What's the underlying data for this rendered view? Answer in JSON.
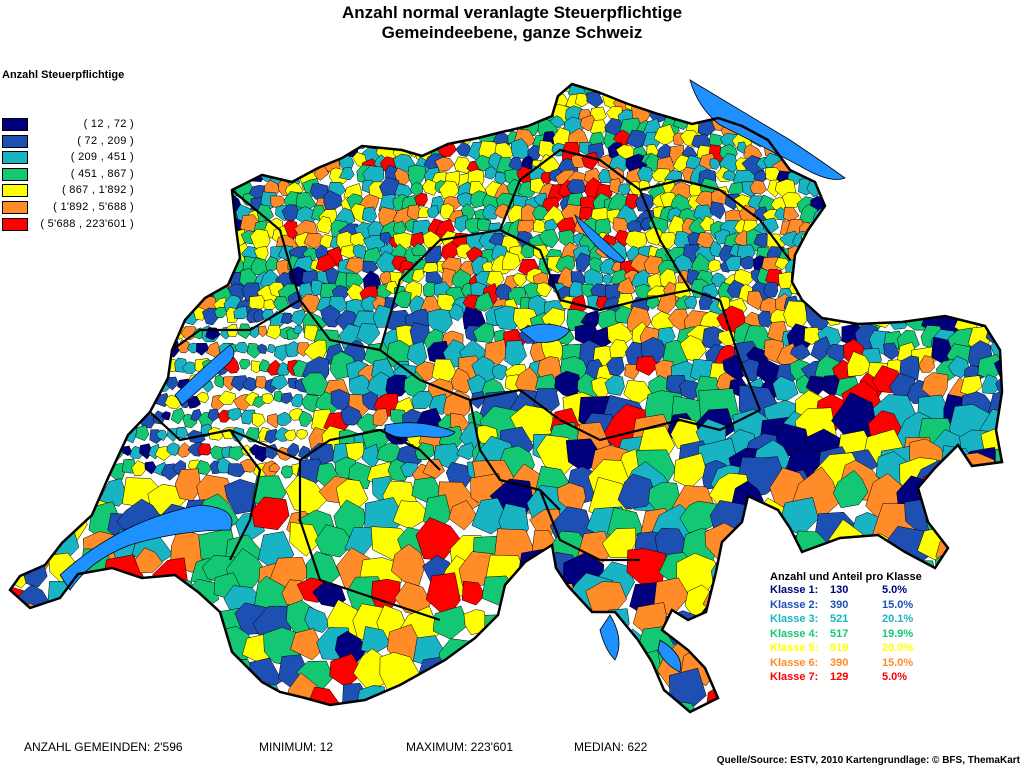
{
  "title_line1": "Anzahl normal veranlagte Steuerpflichtige",
  "title_line2": "Gemeindeebene, ganze Schweiz",
  "legend": {
    "title": "Anzahl Steuerpflichtige",
    "classes": [
      {
        "range": "( 12 , 72 )",
        "color": "#00007f"
      },
      {
        "range": "( 72 , 209 )",
        "color": "#1e50b4"
      },
      {
        "range": "( 209 , 451 )",
        "color": "#19b4c3"
      },
      {
        "range": "( 451 , 867 )",
        "color": "#14c873"
      },
      {
        "range": "( 867 , 1'892 )",
        "color": "#ffff00"
      },
      {
        "range": "( 1'892 , 5'688 )",
        "color": "#ff8c28"
      },
      {
        "range": "( 5'688 , 223'601 )",
        "color": "#ff0000"
      }
    ]
  },
  "class_stats": {
    "title": "Anzahl und Anteil pro Klasse",
    "rows": [
      {
        "label": "Klasse 1:",
        "count": "130",
        "share": "5.0%",
        "color": "#00007f"
      },
      {
        "label": "Klasse 2:",
        "count": "390",
        "share": "15.0%",
        "color": "#1e50b4"
      },
      {
        "label": "Klasse 3:",
        "count": "521",
        "share": "20.1%",
        "color": "#19b4c3"
      },
      {
        "label": "Klasse 4:",
        "count": "517",
        "share": "19.9%",
        "color": "#14c873"
      },
      {
        "label": "Klasse 5:",
        "count": "519",
        "share": "20.0%",
        "color": "#ffff00"
      },
      {
        "label": "Klasse 6:",
        "count": "390",
        "share": "15.0%",
        "color": "#ff8c28"
      },
      {
        "label": "Klasse 7:",
        "count": "129",
        "share": "5.0%",
        "color": "#ff0000"
      }
    ]
  },
  "footer": {
    "gemeinden": "ANZAHL GEMEINDEN: 2'596",
    "minimum": "MINIMUM: 12",
    "maximum": "MAXIMUM: 223'601",
    "median": "MEDIAN: 622",
    "source": "Quelle/Source: ESTV, 2010 Kartengrundlage: © BFS, ThemaKart"
  },
  "map_colors": {
    "lake": "#1e90ff",
    "border": "#000000"
  }
}
